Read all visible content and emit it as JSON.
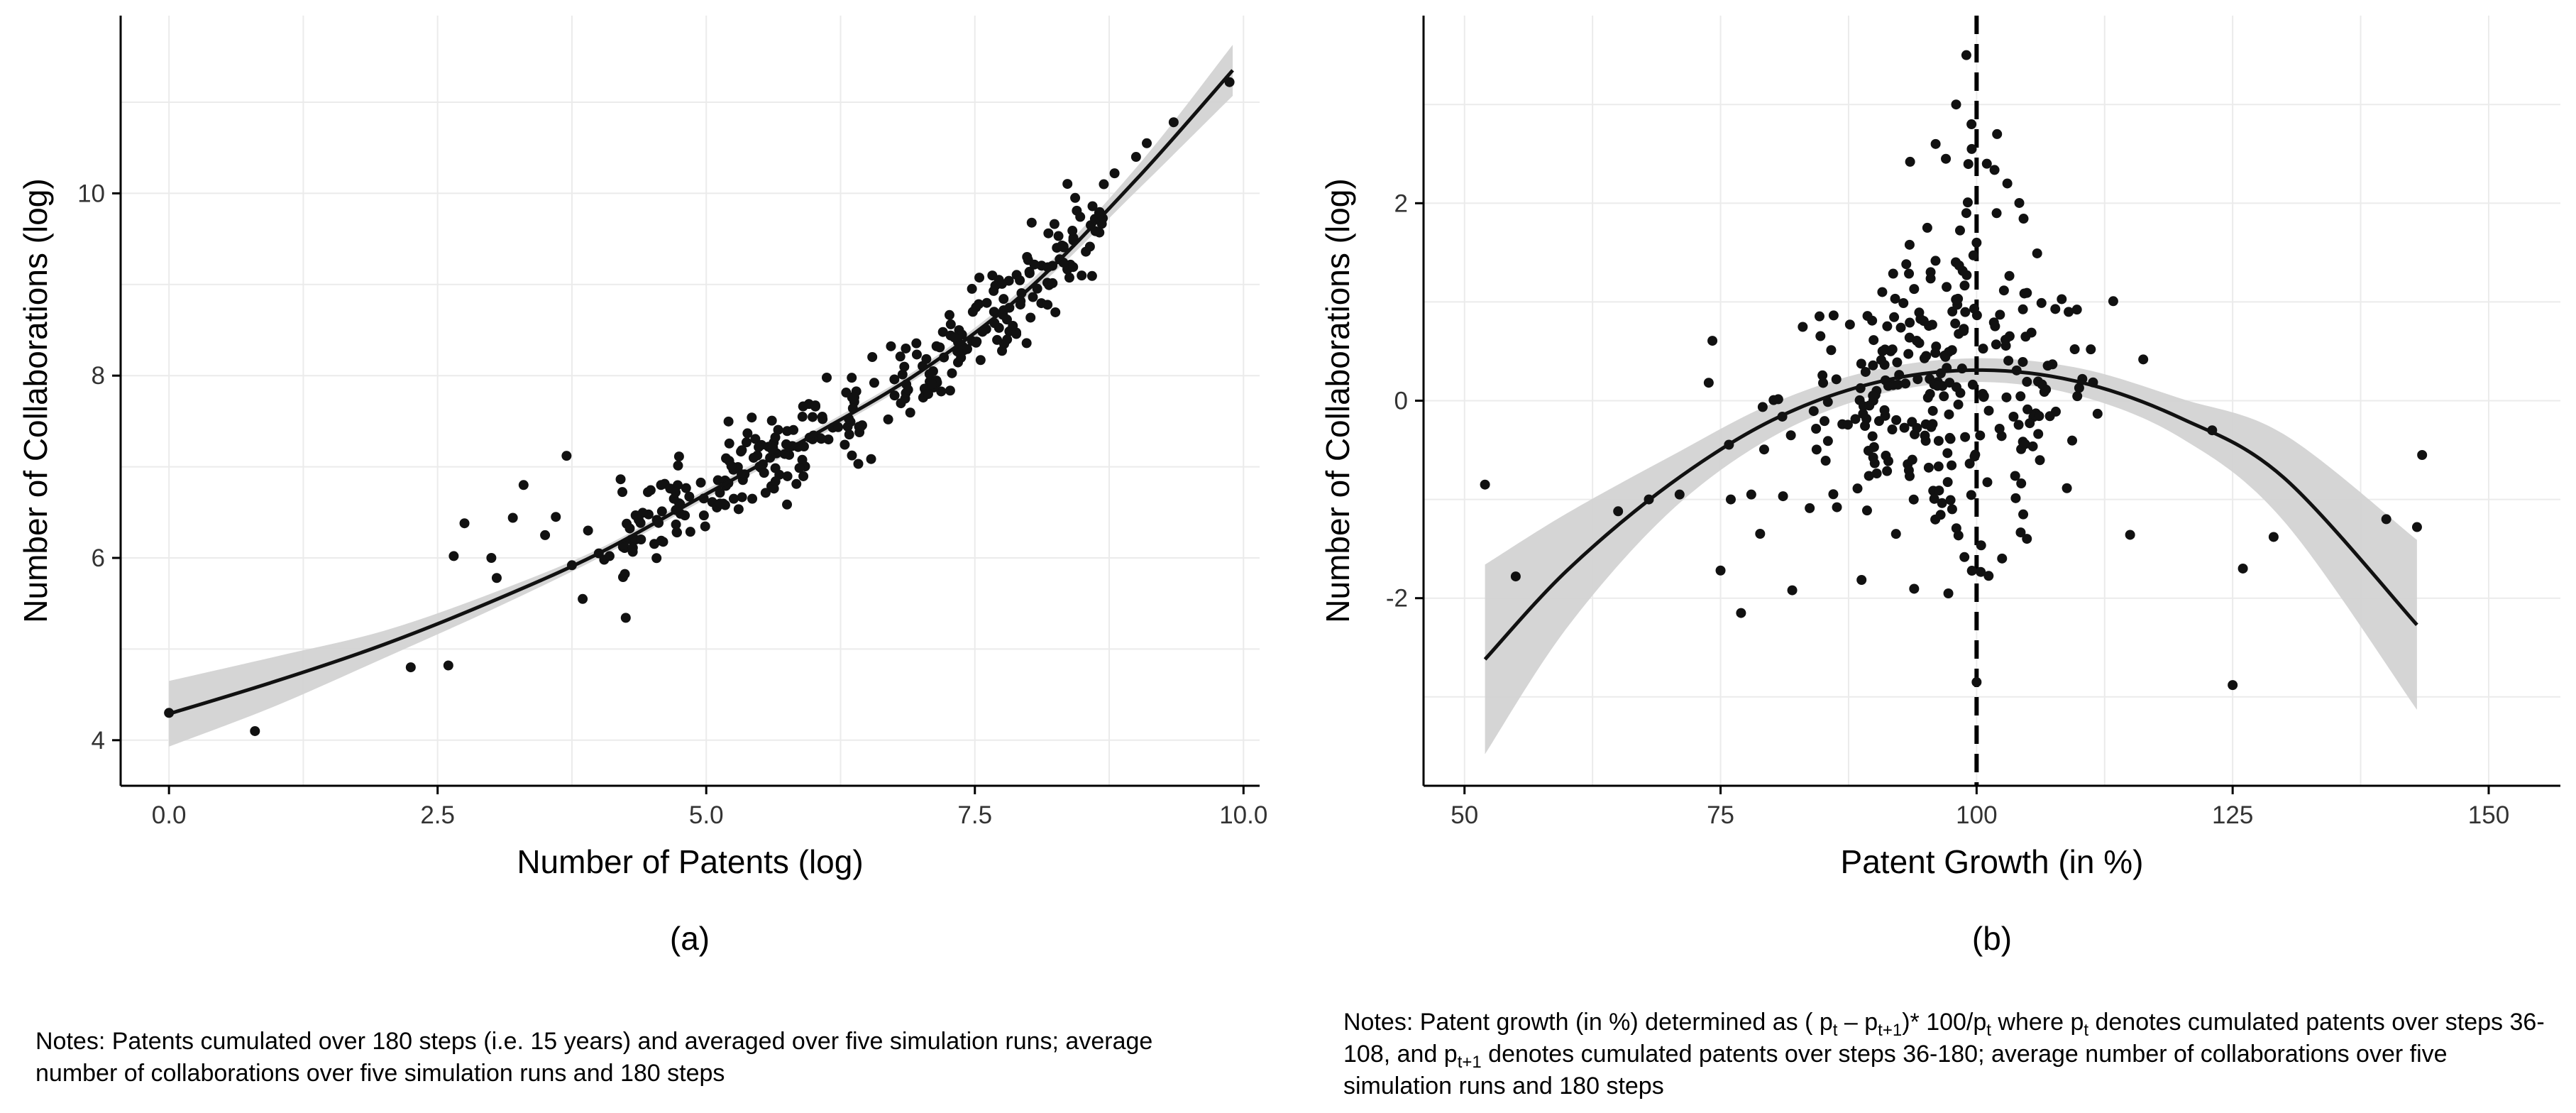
{
  "chart_data": [
    {
      "panel": "a",
      "type": "scatter",
      "caption": "(a)",
      "xlabel": "Number of Patents (log)",
      "ylabel": "Number of Collaborations (log)",
      "xlim": [
        -0.45,
        10.15
      ],
      "ylim": [
        3.5,
        11.95
      ],
      "xticks": [
        0.0,
        2.5,
        5.0,
        7.5,
        10.0
      ],
      "xtick_labels": [
        "0.0",
        "2.5",
        "5.0",
        "7.5",
        "10.0"
      ],
      "yticks": [
        4,
        6,
        8,
        10
      ],
      "ytick_labels": [
        "4",
        "6",
        "8",
        "10"
      ],
      "grid": true,
      "fit": {
        "method": "smooth",
        "x": [
          0.0,
          1.0,
          2.0,
          3.0,
          4.0,
          5.0,
          6.0,
          7.0,
          8.0,
          9.0,
          9.9
        ],
        "y": [
          4.29,
          4.65,
          5.05,
          5.52,
          6.05,
          6.7,
          7.35,
          8.05,
          8.95,
          10.15,
          11.35
        ],
        "ci_lower": [
          3.93,
          4.38,
          4.9,
          5.43,
          6.0,
          6.65,
          7.3,
          8.0,
          8.88,
          10.02,
          11.07
        ],
        "ci_upper": [
          4.65,
          4.92,
          5.2,
          5.61,
          6.1,
          6.75,
          7.4,
          8.1,
          9.02,
          10.28,
          11.63
        ]
      },
      "points": {
        "x": [
          0.0,
          0.8,
          2.25,
          2.6,
          2.65,
          2.75,
          3.0,
          3.05,
          3.2,
          3.3,
          3.5,
          3.6,
          3.7,
          3.75,
          3.85,
          3.9,
          4.0,
          4.05,
          4.1,
          4.3,
          9.87,
          9.35,
          9.1,
          9.0,
          8.8,
          8.7
        ],
        "y": [
          4.3,
          4.1,
          4.8,
          4.82,
          6.02,
          6.38,
          6.0,
          5.78,
          6.44,
          6.8,
          6.25,
          6.45,
          7.12,
          5.92,
          5.55,
          6.3,
          6.05,
          5.98,
          6.02,
          6.2,
          11.22,
          10.78,
          10.55,
          10.4,
          10.22,
          10.1
        ]
      },
      "point_cloud": {
        "x_range": [
          4.2,
          8.7
        ],
        "n": 300,
        "residual_sd": 0.25
      }
    },
    {
      "panel": "b",
      "type": "scatter",
      "caption": "(b)",
      "xlabel": "Patent Growth (in %)",
      "ylabel": "Number of Collaborations (log)",
      "xlim": [
        46,
        157
      ],
      "ylim": [
        -3.9,
        3.9
      ],
      "xticks": [
        50,
        75,
        100,
        125,
        150
      ],
      "xtick_labels": [
        "50",
        "75",
        "100",
        "125",
        "150"
      ],
      "yticks": [
        -2,
        0,
        2
      ],
      "ytick_labels": [
        "-2",
        "0",
        "2"
      ],
      "grid": true,
      "reference_line": {
        "x": 100,
        "style": "dashed"
      },
      "fit": {
        "method": "quadratic",
        "x": [
          52,
          60,
          70,
          80,
          90,
          100,
          110,
          120,
          130,
          143
        ],
        "y": [
          -2.62,
          -1.72,
          -0.85,
          -0.2,
          0.18,
          0.31,
          0.19,
          -0.18,
          -0.78,
          -2.27
        ],
        "ci_lower": [
          -3.58,
          -2.3,
          -1.13,
          -0.37,
          0.05,
          0.19,
          0.05,
          -0.38,
          -1.22,
          -3.13
        ],
        "ci_upper": [
          -1.66,
          -1.14,
          -0.57,
          -0.03,
          0.31,
          0.43,
          0.33,
          0.02,
          -0.34,
          -1.41
        ]
      },
      "points": {
        "x": [
          52,
          55,
          65,
          68,
          71,
          75,
          76,
          77,
          78,
          82,
          99,
          99.5,
          100,
          125,
          126,
          129,
          140,
          143,
          143.5,
          123
        ],
        "y": [
          -0.85,
          -1.78,
          -1.12,
          -1.0,
          -0.95,
          -1.72,
          -1.0,
          -2.15,
          -0.95,
          -1.92,
          3.5,
          2.8,
          -2.85,
          -2.88,
          -1.7,
          -1.38,
          -1.2,
          -1.28,
          -0.55,
          -0.3
        ],
        "spike_x": [
          96,
          97,
          98,
          99,
          100,
          101,
          102,
          103
        ],
        "spike_y": [
          2.6,
          2.45,
          3.0,
          1.9,
          1.6,
          2.4,
          2.7,
          2.2
        ]
      },
      "point_cloud": {
        "x_center": 97,
        "x_sd": 8,
        "y_center": 0.05,
        "y_sd": 0.55,
        "n": 280
      }
    }
  ],
  "notes": {
    "a": "Notes: Patents cumulated over 180 steps (i.e. 15 years) and averaged over five simulation runs; average number of collaborations over five simulation runs and 180 steps",
    "b_part1": "Notes: Patent growth (in %) determined as ( p",
    "b_sub1": "t",
    "b_part2": " – p",
    "b_sub2": "t+1",
    "b_part3": ")* 100/p",
    "b_sub3": "t",
    "b_part4": " where p",
    "b_sub4": "t",
    "b_part5": " denotes cumulated patents over steps 36-108, and p",
    "b_sub5": "t+1",
    "b_part6": " denotes cumulated patents over steps 36-180; average number of collaborations over five simulation runs and 180 steps"
  },
  "colors": {
    "point": "#111111",
    "fit_line": "#111111",
    "ci_band": "#d3d3d3",
    "grid": "#ebebeb",
    "axis": "#000000"
  }
}
